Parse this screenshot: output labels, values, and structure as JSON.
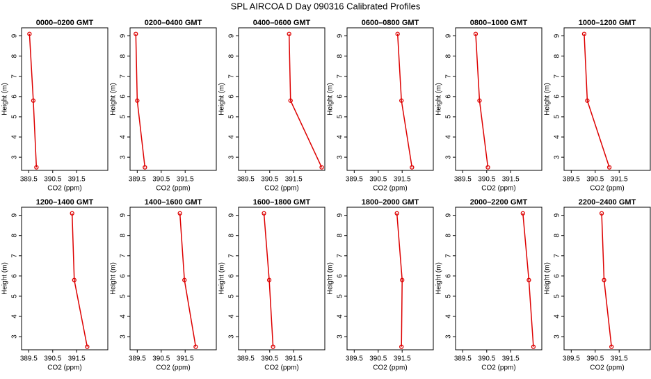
{
  "title": "SPL AIRCOA D  Day 090316  Calibrated Profiles",
  "chart_data": [
    {
      "type": "line",
      "title": "0000–0200 GMT",
      "x_label": "CO2 (ppm)",
      "y_label": "Height (m)",
      "x": [
        389.53,
        389.69,
        389.82
      ],
      "values": [
        9.1,
        5.8,
        2.5
      ],
      "color": "#dd0000",
      "xlim": [
        389.2,
        392.8
      ],
      "ylim": [
        2.35,
        9.4
      ],
      "xticks": [
        389.5,
        390.5,
        391.5
      ],
      "yticks": [
        3,
        4,
        5,
        6,
        7,
        8,
        9
      ]
    },
    {
      "type": "line",
      "title": "0200–0400 GMT",
      "x_label": "CO2 (ppm)",
      "y_label": "Height (m)",
      "x": [
        389.44,
        389.5,
        389.82
      ],
      "values": [
        9.1,
        5.8,
        2.5
      ],
      "color": "#dd0000",
      "xlim": [
        389.2,
        392.8
      ],
      "ylim": [
        2.35,
        9.4
      ],
      "xticks": [
        389.5,
        390.5,
        391.5
      ],
      "yticks": [
        3,
        4,
        5,
        6,
        7,
        8,
        9
      ]
    },
    {
      "type": "line",
      "title": "0400–0600 GMT",
      "x_label": "CO2 (ppm)",
      "y_label": "Height (m)",
      "x": [
        391.31,
        391.37,
        392.67
      ],
      "values": [
        9.1,
        5.8,
        2.5
      ],
      "color": "#dd0000",
      "xlim": [
        389.2,
        392.8
      ],
      "ylim": [
        2.35,
        9.4
      ],
      "xticks": [
        389.5,
        390.5,
        391.5
      ],
      "yticks": [
        3,
        4,
        5,
        6,
        7,
        8,
        9
      ]
    },
    {
      "type": "line",
      "title": "0600–0800 GMT",
      "x_label": "CO2 (ppm)",
      "y_label": "Height (m)",
      "x": [
        391.31,
        391.47,
        391.91
      ],
      "values": [
        9.1,
        5.8,
        2.5
      ],
      "color": "#dd0000",
      "xlim": [
        389.2,
        392.8
      ],
      "ylim": [
        2.35,
        9.4
      ],
      "xticks": [
        389.5,
        390.5,
        391.5
      ],
      "yticks": [
        3,
        4,
        5,
        6,
        7,
        8,
        9
      ]
    },
    {
      "type": "line",
      "title": "0800–1000 GMT",
      "x_label": "CO2 (ppm)",
      "y_label": "Height (m)",
      "x": [
        390.04,
        390.2,
        390.55
      ],
      "values": [
        9.1,
        5.8,
        2.5
      ],
      "color": "#dd0000",
      "xlim": [
        389.2,
        392.8
      ],
      "ylim": [
        2.35,
        9.4
      ],
      "xticks": [
        389.5,
        390.5,
        391.5
      ],
      "yticks": [
        3,
        4,
        5,
        6,
        7,
        8,
        9
      ]
    },
    {
      "type": "line",
      "title": "1000–1200 GMT",
      "x_label": "CO2 (ppm)",
      "y_label": "Height (m)",
      "x": [
        390.04,
        390.17,
        391.09
      ],
      "values": [
        9.1,
        5.8,
        2.5
      ],
      "color": "#dd0000",
      "xlim": [
        389.2,
        392.8
      ],
      "ylim": [
        2.35,
        9.4
      ],
      "xticks": [
        389.5,
        390.5,
        391.5
      ],
      "yticks": [
        3,
        4,
        5,
        6,
        7,
        8,
        9
      ]
    },
    {
      "type": "line",
      "title": "1200–1400 GMT",
      "x_label": "CO2 (ppm)",
      "y_label": "Height (m)",
      "x": [
        391.31,
        391.4,
        391.94
      ],
      "values": [
        9.1,
        5.8,
        2.5
      ],
      "color": "#dd0000",
      "xlim": [
        389.2,
        392.8
      ],
      "ylim": [
        2.35,
        9.4
      ],
      "xticks": [
        389.5,
        390.5,
        391.5
      ],
      "yticks": [
        3,
        4,
        5,
        6,
        7,
        8,
        9
      ]
    },
    {
      "type": "line",
      "title": "1400–1600 GMT",
      "x_label": "CO2 (ppm)",
      "y_label": "Height (m)",
      "x": [
        391.28,
        391.47,
        391.94
      ],
      "values": [
        9.1,
        5.8,
        2.5
      ],
      "color": "#dd0000",
      "xlim": [
        389.2,
        392.8
      ],
      "ylim": [
        2.35,
        9.4
      ],
      "xticks": [
        389.5,
        390.5,
        391.5
      ],
      "yticks": [
        3,
        4,
        5,
        6,
        7,
        8,
        9
      ]
    },
    {
      "type": "line",
      "title": "1600–1800 GMT",
      "x_label": "CO2 (ppm)",
      "y_label": "Height (m)",
      "x": [
        390.26,
        390.48,
        390.64
      ],
      "values": [
        9.1,
        5.8,
        2.5
      ],
      "color": "#dd0000",
      "xlim": [
        389.2,
        392.8
      ],
      "ylim": [
        2.35,
        9.4
      ],
      "xticks": [
        389.5,
        390.5,
        391.5
      ],
      "yticks": [
        3,
        4,
        5,
        6,
        7,
        8,
        9
      ]
    },
    {
      "type": "line",
      "title": "1800–2000 GMT",
      "x_label": "CO2 (ppm)",
      "y_label": "Height (m)",
      "x": [
        391.28,
        391.5,
        391.47
      ],
      "values": [
        9.1,
        5.8,
        2.5
      ],
      "color": "#dd0000",
      "xlim": [
        389.2,
        392.8
      ],
      "ylim": [
        2.35,
        9.4
      ],
      "xticks": [
        389.5,
        390.5,
        391.5
      ],
      "yticks": [
        3,
        4,
        5,
        6,
        7,
        8,
        9
      ]
    },
    {
      "type": "line",
      "title": "2000–2200 GMT",
      "x_label": "CO2 (ppm)",
      "y_label": "Height (m)",
      "x": [
        392.01,
        392.26,
        392.45
      ],
      "values": [
        9.1,
        5.8,
        2.5
      ],
      "color": "#dd0000",
      "xlim": [
        389.2,
        392.8
      ],
      "ylim": [
        2.35,
        9.4
      ],
      "xticks": [
        389.5,
        390.5,
        391.5
      ],
      "yticks": [
        3,
        4,
        5,
        6,
        7,
        8,
        9
      ]
    },
    {
      "type": "line",
      "title": "2200–2400 GMT",
      "x_label": "CO2 (ppm)",
      "y_label": "Height (m)",
      "x": [
        390.77,
        390.87,
        391.18
      ],
      "values": [
        9.1,
        5.8,
        2.5
      ],
      "color": "#dd0000",
      "xlim": [
        389.2,
        392.8
      ],
      "ylim": [
        2.35,
        9.4
      ],
      "xticks": [
        389.5,
        390.5,
        391.5
      ],
      "yticks": [
        3,
        4,
        5,
        6,
        7,
        8,
        9
      ]
    }
  ]
}
